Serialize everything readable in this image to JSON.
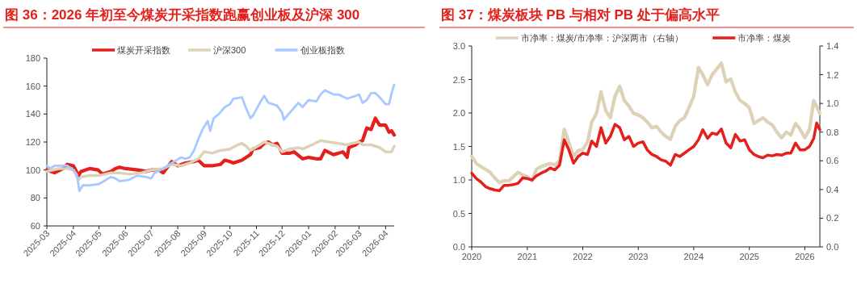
{
  "chart_data": [
    {
      "type": "line",
      "title": "图 36：2026 年初至今煤炭开采指数跑赢创业板及沪深 300",
      "legend": "top",
      "grid": false,
      "line_style": "solid",
      "marker": "none",
      "xlim": [
        "2025-03-01",
        "2026-04-11"
      ],
      "xticks": [
        {
          "value": "2025-03-01",
          "label": "2025-03"
        },
        {
          "value": "2025-04-01",
          "label": "2025-04"
        },
        {
          "value": "2025-05-01",
          "label": "2025-05"
        },
        {
          "value": "2025-06-01",
          "label": "2025-06"
        },
        {
          "value": "2025-07-01",
          "label": "2025-07"
        },
        {
          "value": "2025-08-01",
          "label": "2025-08"
        },
        {
          "value": "2025-09-01",
          "label": "2025-09"
        },
        {
          "value": "2025-10-01",
          "label": "2025-10"
        },
        {
          "value": "2025-11-01",
          "label": "2025-11"
        },
        {
          "value": "2025-12-01",
          "label": "2025-12"
        },
        {
          "value": "2026-01-01",
          "label": "2026-01"
        },
        {
          "value": "2026-02-01",
          "label": "2026-02"
        },
        {
          "value": "2026-03-01",
          "label": "2026-03"
        },
        {
          "value": "2026-04-01",
          "label": "2026-04"
        }
      ],
      "ylim": [
        60,
        180
      ],
      "yticks": [
        60,
        80,
        100,
        120,
        140,
        160,
        180
      ],
      "series": [
        {
          "name": "煤炭开采指数",
          "color": "#e3201b",
          "x": [
            "2025-03-01",
            "2025-03-10",
            "2025-03-20",
            "2025-03-25",
            "2025-04-01",
            "2025-04-07",
            "2025-04-10",
            "2025-04-20",
            "2025-04-30",
            "2025-05-05",
            "2025-05-15",
            "2025-05-20",
            "2025-05-25",
            "2025-06-01",
            "2025-06-15",
            "2025-06-25",
            "2025-07-01",
            "2025-07-10",
            "2025-07-15",
            "2025-07-20",
            "2025-07-25",
            "2025-08-01",
            "2025-08-10",
            "2025-08-20",
            "2025-08-25",
            "2025-09-01",
            "2025-09-10",
            "2025-09-20",
            "2025-09-25",
            "2025-10-01",
            "2025-10-05",
            "2025-10-15",
            "2025-10-25",
            "2025-10-28",
            "2025-11-05",
            "2025-11-10",
            "2025-11-15",
            "2025-11-20",
            "2025-11-25",
            "2025-12-01",
            "2025-12-10",
            "2025-12-15",
            "2025-12-25",
            "2026-01-01",
            "2026-01-10",
            "2026-01-15",
            "2026-01-20",
            "2026-01-30",
            "2026-02-05",
            "2026-02-10",
            "2026-02-15",
            "2026-02-17",
            "2026-02-25",
            "2026-03-01",
            "2026-03-05",
            "2026-03-10",
            "2026-03-15",
            "2026-03-20",
            "2026-03-25",
            "2026-04-01",
            "2026-04-05",
            "2026-04-08",
            "2026-04-11"
          ],
          "values": [
            100,
            98,
            101,
            104,
            103,
            96,
            99,
            101,
            100,
            97,
            99,
            101,
            102,
            101,
            100,
            99,
            100,
            100,
            98,
            102,
            106,
            103,
            105,
            106,
            107,
            103,
            103,
            104,
            107,
            106,
            105,
            107,
            111,
            115,
            116,
            119,
            120,
            118,
            119,
            112,
            112,
            113,
            108,
            109,
            108,
            108,
            114,
            111,
            112,
            113,
            109,
            116,
            118,
            120,
            121,
            130,
            129,
            137,
            132,
            132,
            127,
            128,
            125
          ]
        },
        {
          "name": "沪深300",
          "color": "#ddd1b8",
          "x": [
            "2025-03-01",
            "2025-03-15",
            "2025-03-25",
            "2025-04-01",
            "2025-04-07",
            "2025-04-10",
            "2025-04-20",
            "2025-05-01",
            "2025-05-15",
            "2025-05-25",
            "2025-06-05",
            "2025-06-20",
            "2025-07-01",
            "2025-07-15",
            "2025-07-25",
            "2025-08-05",
            "2025-08-15",
            "2025-08-25",
            "2025-09-01",
            "2025-09-10",
            "2025-09-20",
            "2025-10-01",
            "2025-10-10",
            "2025-10-15",
            "2025-10-20",
            "2025-10-25",
            "2025-11-05",
            "2025-11-10",
            "2025-11-20",
            "2025-11-25",
            "2025-12-01",
            "2025-12-10",
            "2025-12-20",
            "2025-12-25",
            "2026-01-05",
            "2026-01-15",
            "2026-01-25",
            "2026-02-05",
            "2026-02-15",
            "2026-02-20",
            "2026-03-01",
            "2026-03-05",
            "2026-03-15",
            "2026-03-25",
            "2026-04-01",
            "2026-04-08",
            "2026-04-11"
          ],
          "values": [
            99,
            101,
            101,
            100,
            93,
            95,
            96,
            96,
            98,
            98,
            97,
            98,
            100,
            101,
            104,
            103,
            105,
            108,
            113,
            112,
            114,
            115,
            118,
            119,
            117,
            114,
            118,
            120,
            118,
            117,
            113,
            115,
            116,
            115,
            118,
            121,
            120,
            119,
            118,
            119,
            120,
            118,
            118,
            116,
            113,
            113,
            117
          ]
        },
        {
          "name": "创业板指数",
          "color": "#a8c8ff",
          "x": [
            "2025-03-01",
            "2025-03-05",
            "2025-03-10",
            "2025-03-25",
            "2025-04-01",
            "2025-04-05",
            "2025-04-08",
            "2025-04-12",
            "2025-04-20",
            "2025-05-01",
            "2025-05-15",
            "2025-05-20",
            "2025-05-25",
            "2025-06-05",
            "2025-06-15",
            "2025-06-25",
            "2025-07-01",
            "2025-07-05",
            "2025-07-15",
            "2025-07-25",
            "2025-08-05",
            "2025-08-10",
            "2025-08-15",
            "2025-08-20",
            "2025-08-25",
            "2025-08-30",
            "2025-09-05",
            "2025-09-08",
            "2025-09-12",
            "2025-09-18",
            "2025-09-25",
            "2025-10-01",
            "2025-10-05",
            "2025-10-15",
            "2025-10-20",
            "2025-10-25",
            "2025-10-28",
            "2025-11-05",
            "2025-11-10",
            "2025-11-15",
            "2025-11-20",
            "2025-11-25",
            "2025-12-01",
            "2025-12-03",
            "2025-12-10",
            "2025-12-20",
            "2025-12-25",
            "2026-01-01",
            "2026-01-10",
            "2026-01-15",
            "2026-01-20",
            "2026-01-30",
            "2026-02-05",
            "2026-02-15",
            "2026-02-25",
            "2026-03-01",
            "2026-03-05",
            "2026-03-10",
            "2026-03-15",
            "2026-03-20",
            "2026-03-25",
            "2026-04-01",
            "2026-04-05",
            "2026-04-08",
            "2026-04-11"
          ],
          "values": [
            103,
            101,
            103,
            103,
            100,
            97,
            85,
            89,
            89,
            90,
            95,
            94,
            92,
            93,
            96,
            95,
            94,
            98,
            101,
            105,
            109,
            108,
            109,
            114,
            122,
            129,
            135,
            128,
            137,
            140,
            145,
            147,
            151,
            152,
            144,
            137,
            139,
            148,
            153,
            148,
            147,
            146,
            141,
            136,
            141,
            148,
            145,
            150,
            149,
            154,
            157,
            154,
            154,
            151,
            153,
            154,
            148,
            150,
            155,
            155,
            152,
            147,
            147,
            155,
            161
          ]
        }
      ]
    },
    {
      "type": "line",
      "title": "图 37：煤炭板块 PB 与相对 PB 处于偏高水平",
      "legend": "top",
      "grid": false,
      "line_style": "solid",
      "marker": "none",
      "xlim": [
        "2020-01-01",
        "2026-04-10"
      ],
      "xticks": [
        {
          "value": "2020-01-01",
          "label": "2020"
        },
        {
          "value": "2021-01-01",
          "label": "2021"
        },
        {
          "value": "2022-01-01",
          "label": "2022"
        },
        {
          "value": "2023-01-01",
          "label": "2023"
        },
        {
          "value": "2024-01-01",
          "label": "2024"
        },
        {
          "value": "2025-01-01",
          "label": "2025"
        },
        {
          "value": "2026-01-01",
          "label": "2026"
        }
      ],
      "ylim": [
        0,
        3
      ],
      "yticks": [
        {
          "value": 0,
          "label": "0.0"
        },
        {
          "value": 0.5,
          "label": "0.5"
        },
        {
          "value": 1,
          "label": "1.0"
        },
        {
          "value": 1.5,
          "label": "1.5"
        },
        {
          "value": 2,
          "label": "2.0"
        },
        {
          "value": 2.5,
          "label": "2.5"
        },
        {
          "value": 3,
          "label": "3.0"
        }
      ],
      "y2lim": [
        0,
        1.4
      ],
      "y2ticks": [
        {
          "value": 0,
          "label": "0.0"
        },
        {
          "value": 0.2,
          "label": "0.2"
        },
        {
          "value": 0.4,
          "label": "0.4"
        },
        {
          "value": 0.6,
          "label": "0.6"
        },
        {
          "value": 0.8,
          "label": "0.8"
        },
        {
          "value": 1,
          "label": "1.0"
        },
        {
          "value": 1.2,
          "label": "1.2"
        },
        {
          "value": 1.4,
          "label": "1.4"
        }
      ],
      "series": [
        {
          "name": "市净率：煤炭/市净率：沪深两市（右轴）",
          "color": "#ddd1b8",
          "axis": "y2",
          "x": [
            "2020-01",
            "2020-02",
            "2020-03",
            "2020-04",
            "2020-05",
            "2020-06",
            "2020-07",
            "2020-08",
            "2020-09",
            "2020-10",
            "2020-11",
            "2020-12",
            "2021-01",
            "2021-02",
            "2021-03",
            "2021-04",
            "2021-05",
            "2021-06",
            "2021-07",
            "2021-08",
            "2021-09",
            "2021-10",
            "2021-11",
            "2021-12",
            "2022-01",
            "2022-02",
            "2022-03",
            "2022-04",
            "2022-05",
            "2022-06",
            "2022-07",
            "2022-08",
            "2022-09",
            "2022-10",
            "2022-11",
            "2022-12",
            "2023-01",
            "2023-02",
            "2023-03",
            "2023-04",
            "2023-05",
            "2023-06",
            "2023-07",
            "2023-08",
            "2023-09",
            "2023-10",
            "2023-11",
            "2023-12",
            "2024-01",
            "2024-02",
            "2024-03",
            "2024-04",
            "2024-05",
            "2024-06",
            "2024-07",
            "2024-08",
            "2024-09",
            "2024-10",
            "2024-11",
            "2024-12",
            "2025-01",
            "2025-02",
            "2025-03",
            "2025-04",
            "2025-05",
            "2025-06",
            "2025-07",
            "2025-08",
            "2025-09",
            "2025-10",
            "2025-11",
            "2025-12",
            "2026-01",
            "2026-02",
            "2026-03",
            "2026-04-10"
          ],
          "values": [
            0.63,
            0.58,
            0.56,
            0.54,
            0.52,
            0.48,
            0.45,
            0.46,
            0.46,
            0.49,
            0.52,
            0.5,
            0.49,
            0.46,
            0.54,
            0.56,
            0.57,
            0.58,
            0.57,
            0.6,
            0.82,
            0.73,
            0.63,
            0.67,
            0.68,
            0.73,
            0.87,
            0.93,
            1.08,
            0.95,
            0.9,
            1.05,
            1.12,
            1.02,
            0.98,
            0.93,
            0.92,
            0.9,
            0.87,
            0.83,
            0.84,
            0.8,
            0.77,
            0.75,
            0.84,
            0.88,
            0.9,
            0.97,
            1.05,
            1.25,
            1.2,
            1.13,
            1.2,
            1.24,
            1.28,
            1.15,
            1.17,
            1.08,
            1.02,
            1.0,
            0.97,
            0.86,
            0.88,
            0.9,
            0.87,
            0.85,
            0.8,
            0.76,
            0.8,
            0.78,
            0.86,
            0.82,
            0.76,
            0.82,
            1.02,
            0.93
          ]
        },
        {
          "name": "市净率：煤炭",
          "color": "#e3201b",
          "x": [
            "2020-01",
            "2020-02",
            "2020-03",
            "2020-04",
            "2020-05",
            "2020-06",
            "2020-07",
            "2020-08",
            "2020-09",
            "2020-10",
            "2020-11",
            "2020-12",
            "2021-01",
            "2021-02",
            "2021-03",
            "2021-04",
            "2021-05",
            "2021-06",
            "2021-07",
            "2021-08",
            "2021-09",
            "2021-10",
            "2021-11",
            "2021-12",
            "2022-01",
            "2022-02",
            "2022-03",
            "2022-04",
            "2022-05",
            "2022-06",
            "2022-07",
            "2022-08",
            "2022-09",
            "2022-10",
            "2022-11",
            "2022-12",
            "2023-01",
            "2023-02",
            "2023-03",
            "2023-04",
            "2023-05",
            "2023-06",
            "2023-07",
            "2023-08",
            "2023-09",
            "2023-10",
            "2023-11",
            "2023-12",
            "2024-01",
            "2024-02",
            "2024-03",
            "2024-04",
            "2024-05",
            "2024-06",
            "2024-07",
            "2024-08",
            "2024-09",
            "2024-10",
            "2024-11",
            "2024-12",
            "2025-01",
            "2025-02",
            "2025-03",
            "2025-04",
            "2025-05",
            "2025-06",
            "2025-07",
            "2025-08",
            "2025-09",
            "2025-10",
            "2025-11",
            "2025-12",
            "2026-01",
            "2026-02",
            "2026-03",
            "2026-03-20",
            "2026-04-10"
          ],
          "values": [
            1.1,
            1.02,
            0.97,
            0.9,
            0.87,
            0.85,
            0.84,
            0.92,
            0.92,
            0.93,
            0.95,
            1.03,
            1.02,
            1.0,
            1.06,
            1.1,
            1.13,
            1.18,
            1.15,
            1.22,
            1.6,
            1.45,
            1.25,
            1.35,
            1.4,
            1.38,
            1.58,
            1.5,
            1.78,
            1.55,
            1.65,
            1.83,
            1.78,
            1.6,
            1.65,
            1.5,
            1.55,
            1.57,
            1.45,
            1.38,
            1.35,
            1.3,
            1.28,
            1.22,
            1.38,
            1.35,
            1.4,
            1.45,
            1.5,
            1.6,
            1.75,
            1.62,
            1.7,
            1.68,
            1.76,
            1.55,
            1.48,
            1.68,
            1.58,
            1.6,
            1.45,
            1.38,
            1.35,
            1.33,
            1.37,
            1.36,
            1.38,
            1.37,
            1.4,
            1.4,
            1.55,
            1.45,
            1.45,
            1.5,
            1.62,
            1.85,
            1.75
          ]
        }
      ]
    }
  ]
}
